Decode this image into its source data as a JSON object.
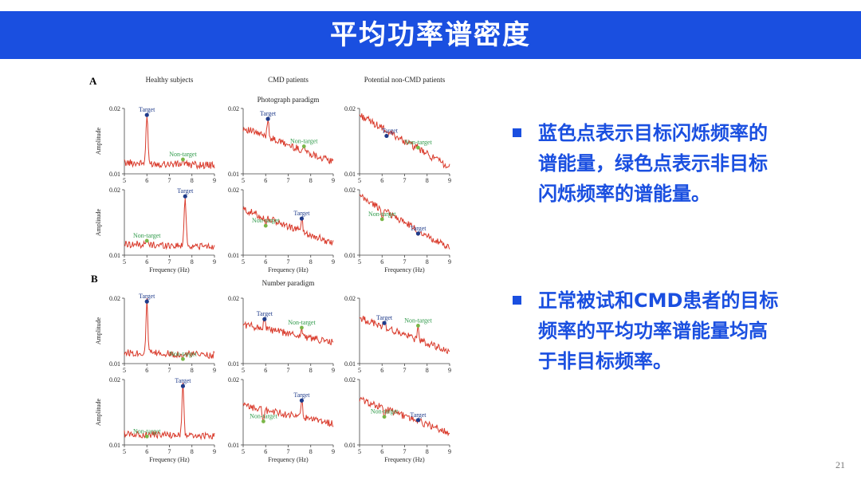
{
  "slide": {
    "title": "平均功率谱密度",
    "page_number": "21",
    "bullets": [
      "蓝色点表示目标闪烁频率的谱能量，绿色点表示非目标闪烁频率的谱能量。",
      "正常被试和CMD患者的目标频率的平均功率谱能量均高于非目标频率。"
    ]
  },
  "colors": {
    "header": "#1a4fe0",
    "bullet_text": "#1a4fe0",
    "trace": "#d93a2b",
    "target_dot": "#1f3b8a",
    "nontarget_dot": "#7ab648"
  },
  "figure": {
    "panel_A_label": "A",
    "panel_B_label": "B",
    "column_titles": [
      "Healthy subjects",
      "CMD patients",
      "Potential non-CMD patients"
    ],
    "paradigm_A": "Photograph paradigm",
    "paradigm_B": "Number paradigm",
    "x_label": "Frequency (Hz)",
    "y_label": "Amplitude",
    "target_label": "Target",
    "nontarget_label": "Non-target",
    "x_ticks": [
      "5",
      "6",
      "7",
      "8",
      "9"
    ],
    "y_ticks": [
      "0.01",
      "0.02"
    ]
  },
  "chart_data": {
    "type": "line",
    "x_range": [
      5,
      9
    ],
    "y_range": [
      0.01,
      0.02
    ],
    "subplots": [
      {
        "panel": "A",
        "column": "Healthy subjects",
        "row": 1,
        "target_x": 6.0,
        "target_y": 0.019,
        "nontarget_x": 7.6,
        "nontarget_y": 0.0122,
        "shape": "flat"
      },
      {
        "panel": "A",
        "column": "CMD patients",
        "row": 1,
        "target_x": 6.1,
        "target_y": 0.0184,
        "nontarget_x": 7.7,
        "nontarget_y": 0.0142,
        "shape": "decline"
      },
      {
        "panel": "A",
        "column": "Potential non-CMD patients",
        "row": 1,
        "target_x": 6.2,
        "target_y": 0.0158,
        "nontarget_x": 7.6,
        "nontarget_y": 0.014,
        "shape": "steep"
      },
      {
        "panel": "A",
        "column": "Healthy subjects",
        "row": 2,
        "target_x": 7.7,
        "target_y": 0.019,
        "nontarget_x": 6.0,
        "nontarget_y": 0.0122,
        "shape": "flat"
      },
      {
        "panel": "A",
        "column": "CMD patients",
        "row": 2,
        "target_x": 7.6,
        "target_y": 0.0156,
        "nontarget_x": 6.0,
        "nontarget_y": 0.0145,
        "shape": "decline"
      },
      {
        "panel": "A",
        "column": "Potential non-CMD patients",
        "row": 2,
        "target_x": 7.6,
        "target_y": 0.0133,
        "nontarget_x": 6.0,
        "nontarget_y": 0.0155,
        "shape": "steep"
      },
      {
        "panel": "B",
        "column": "Healthy subjects",
        "row": 1,
        "target_x": 6.0,
        "target_y": 0.0195,
        "nontarget_x": 7.6,
        "nontarget_y": 0.0107,
        "shape": "flat"
      },
      {
        "panel": "B",
        "column": "CMD patients",
        "row": 1,
        "target_x": 5.95,
        "target_y": 0.0168,
        "nontarget_x": 7.6,
        "nontarget_y": 0.0155,
        "shape": "mild"
      },
      {
        "panel": "B",
        "column": "Potential non-CMD patients",
        "row": 1,
        "target_x": 6.1,
        "target_y": 0.0162,
        "nontarget_x": 7.6,
        "nontarget_y": 0.0158,
        "shape": "decline"
      },
      {
        "panel": "B",
        "column": "Healthy subjects",
        "row": 2,
        "target_x": 7.6,
        "target_y": 0.019,
        "nontarget_x": 6.0,
        "nontarget_y": 0.0113,
        "shape": "flat"
      },
      {
        "panel": "B",
        "column": "CMD patients",
        "row": 2,
        "target_x": 7.6,
        "target_y": 0.0168,
        "nontarget_x": 5.9,
        "nontarget_y": 0.0136,
        "shape": "mild"
      },
      {
        "panel": "B",
        "column": "Potential non-CMD patients",
        "row": 2,
        "target_x": 7.6,
        "target_y": 0.0138,
        "nontarget_x": 6.1,
        "nontarget_y": 0.0143,
        "shape": "decline"
      }
    ]
  }
}
